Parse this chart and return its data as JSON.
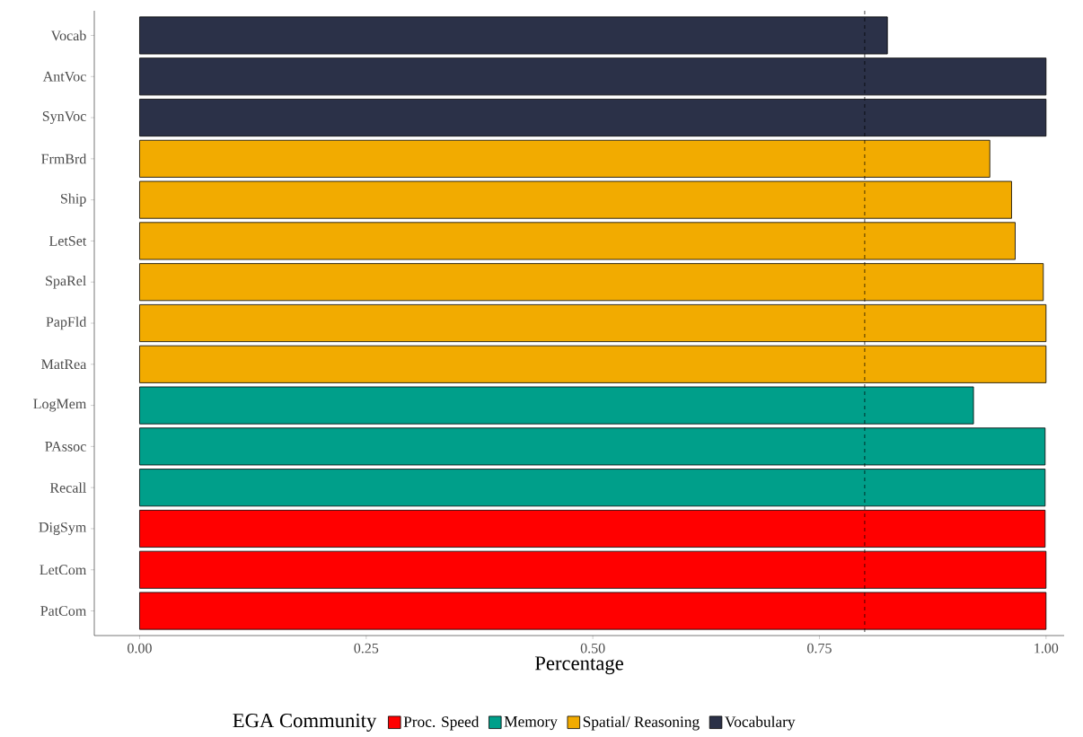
{
  "chart_data": {
    "type": "bar",
    "orientation": "horizontal",
    "xlabel": "Percentage",
    "legend_title": "EGA Community",
    "legend": "bottom",
    "categories": [
      "Vocab",
      "AntVoc",
      "SynVoc",
      "FrmBrd",
      "Ship",
      "LetSet",
      "SpaRel",
      "PapFld",
      "MatRea",
      "LogMem",
      "PAssoc",
      "Recall",
      "DigSym",
      "LetCom",
      "PatCom"
    ],
    "series": [
      {
        "name": "Proc. Speed",
        "color": "#ff0000",
        "values": [
          null,
          null,
          null,
          null,
          null,
          null,
          null,
          null,
          null,
          null,
          null,
          null,
          0.999,
          1.0,
          1.0
        ]
      },
      {
        "name": "Memory",
        "color": "#009f8a",
        "values": [
          null,
          null,
          null,
          null,
          null,
          null,
          null,
          null,
          null,
          0.92,
          0.999,
          0.999,
          null,
          null,
          null
        ]
      },
      {
        "name": "Spatial/ Reasoning",
        "color": "#f2ab00",
        "values": [
          null,
          null,
          null,
          0.938,
          0.962,
          0.966,
          0.997,
          1.0,
          1.0,
          null,
          null,
          null,
          null,
          null,
          null
        ]
      },
      {
        "name": "Vocabulary",
        "color": "#2b3148",
        "values": [
          0.825,
          1.0,
          1.0,
          null,
          null,
          null,
          null,
          null,
          null,
          null,
          null,
          null,
          null,
          null,
          null
        ]
      }
    ],
    "xlim": [
      -0.05,
      1.02
    ],
    "xticks": [
      {
        "value": 0,
        "label": "0.00"
      },
      {
        "value": 0.25,
        "label": "0.25"
      },
      {
        "value": 0.5,
        "label": "0.50"
      },
      {
        "value": 0.75,
        "label": "0.75"
      },
      {
        "value": 1,
        "label": "1.00"
      }
    ],
    "ref_lines": [
      {
        "axis": "x",
        "value": 0.8,
        "line_style": "dashed",
        "color": "#000000"
      }
    ]
  }
}
